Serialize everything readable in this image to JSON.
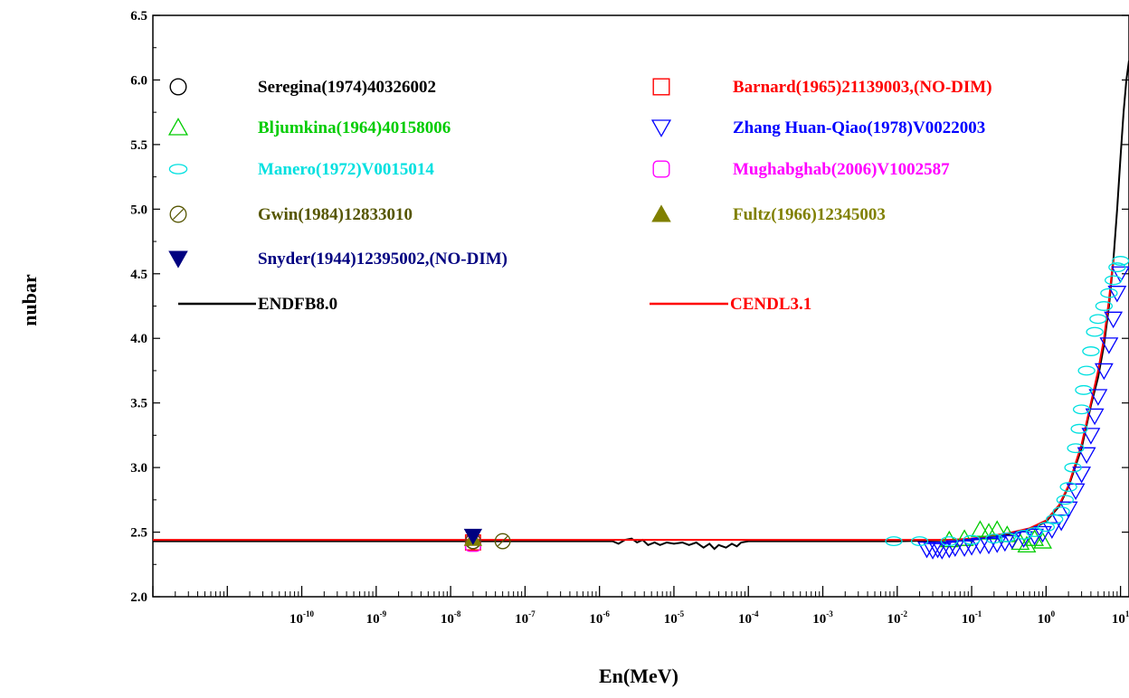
{
  "chart_data": {
    "type": "scatter",
    "title": "",
    "xlabel": "En(MeV)",
    "ylabel": "nubar",
    "xscale": "log",
    "xlim": [
      1e-12,
      13
    ],
    "ylim": [
      2.0,
      6.5
    ],
    "grid": false,
    "legend_position": "top-left",
    "x_tick_labels": [
      {
        "base": "10",
        "exp": "-10",
        "value": 1e-10
      },
      {
        "base": "10",
        "exp": "-9",
        "value": 1e-09
      },
      {
        "base": "10",
        "exp": "-8",
        "value": 1e-08
      },
      {
        "base": "10",
        "exp": "-7",
        "value": 1e-07
      },
      {
        "base": "10",
        "exp": "-6",
        "value": 1e-06
      },
      {
        "base": "10",
        "exp": "-5",
        "value": 1e-05
      },
      {
        "base": "10",
        "exp": "-4",
        "value": 0.0001
      },
      {
        "base": "10",
        "exp": "-3",
        "value": 0.001
      },
      {
        "base": "10",
        "exp": "-2",
        "value": 0.01
      },
      {
        "base": "10",
        "exp": "-1",
        "value": 0.1
      },
      {
        "base": "10",
        "exp": "0",
        "value": 1
      },
      {
        "base": "10",
        "exp": "1",
        "value": 10
      }
    ],
    "y_tick_labels": [
      "2.0",
      "2.5",
      "3.0",
      "3.5",
      "4.0",
      "4.5",
      "5.0",
      "5.5",
      "6.0",
      "6.5"
    ],
    "y_ticks": [
      2.0,
      2.5,
      3.0,
      3.5,
      4.0,
      4.5,
      5.0,
      5.5,
      6.0,
      6.5
    ],
    "series": [
      {
        "name": "Seregina(1974)40326002",
        "marker": "circle",
        "color": "#000000",
        "points": [
          [
            2e-08,
            2.43
          ]
        ]
      },
      {
        "name": "Barnard(1965)21139003,(NO-DIM)",
        "marker": "square",
        "color": "#ff0000",
        "points": [
          [
            2e-08,
            2.42
          ]
        ]
      },
      {
        "name": "Bljumkina(1964)40158006",
        "marker": "triangle-up",
        "color": "#00cc00",
        "points": [
          [
            0.05,
            2.44
          ],
          [
            0.08,
            2.45
          ],
          [
            0.13,
            2.52
          ],
          [
            0.17,
            2.5
          ],
          [
            0.22,
            2.52
          ],
          [
            0.3,
            2.48
          ],
          [
            0.45,
            2.42
          ],
          [
            0.55,
            2.4
          ],
          [
            0.7,
            2.45
          ],
          [
            0.9,
            2.43
          ]
        ]
      },
      {
        "name": "Zhang Huan-Qiao(1978)V0022003",
        "marker": "triangle-down",
        "color": "#0000ff",
        "points": [
          [
            0.025,
            2.37
          ],
          [
            0.03,
            2.36
          ],
          [
            0.035,
            2.37
          ],
          [
            0.04,
            2.36
          ],
          [
            0.05,
            2.37
          ],
          [
            0.06,
            2.38
          ],
          [
            0.08,
            2.38
          ],
          [
            0.1,
            2.39
          ],
          [
            0.13,
            2.4
          ],
          [
            0.17,
            2.4
          ],
          [
            0.22,
            2.41
          ],
          [
            0.28,
            2.42
          ],
          [
            0.35,
            2.44
          ],
          [
            0.5,
            2.45
          ],
          [
            0.7,
            2.47
          ],
          [
            0.9,
            2.49
          ],
          [
            1.2,
            2.52
          ],
          [
            1.6,
            2.58
          ],
          [
            2.0,
            2.68
          ],
          [
            2.5,
            2.82
          ],
          [
            3.0,
            2.95
          ],
          [
            3.5,
            3.1
          ],
          [
            4.0,
            3.25
          ],
          [
            4.5,
            3.4
          ],
          [
            5.0,
            3.55
          ],
          [
            6.0,
            3.75
          ],
          [
            7.0,
            3.95
          ],
          [
            8.0,
            4.15
          ],
          [
            9.0,
            4.35
          ],
          [
            10.0,
            4.5
          ]
        ]
      },
      {
        "name": "Manero(1972)V0015014",
        "marker": "ellipse",
        "color": "#00e0e0",
        "points": [
          [
            0.009,
            2.43
          ],
          [
            0.02,
            2.43
          ],
          [
            0.05,
            2.43
          ],
          [
            0.1,
            2.44
          ],
          [
            0.2,
            2.45
          ],
          [
            0.3,
            2.46
          ],
          [
            0.5,
            2.48
          ],
          [
            0.7,
            2.5
          ],
          [
            1.0,
            2.54
          ],
          [
            1.3,
            2.6
          ],
          [
            1.6,
            2.66
          ],
          [
            1.8,
            2.75
          ],
          [
            2.0,
            2.85
          ],
          [
            2.3,
            3.0
          ],
          [
            2.5,
            3.15
          ],
          [
            2.8,
            3.3
          ],
          [
            3.0,
            3.45
          ],
          [
            3.2,
            3.6
          ],
          [
            3.5,
            3.75
          ],
          [
            4.0,
            3.9
          ],
          [
            4.5,
            4.05
          ],
          [
            5.0,
            4.15
          ],
          [
            6.0,
            4.25
          ],
          [
            7.0,
            4.35
          ],
          [
            8.0,
            4.45
          ],
          [
            9.0,
            4.55
          ],
          [
            10.0,
            4.6
          ]
        ]
      },
      {
        "name": "Mughabghab(2006)V1002587",
        "marker": "rounded-square",
        "color": "#ff00ff",
        "points": [
          [
            2e-08,
            2.41
          ]
        ]
      },
      {
        "name": "Gwin(1984)12833010",
        "marker": "slashed-circle",
        "color": "#555500",
        "points": [
          [
            2e-08,
            2.43
          ],
          [
            5e-08,
            2.43
          ]
        ]
      },
      {
        "name": "Fultz(1966)12345003",
        "marker": "filled-triangle-up",
        "color": "#808000",
        "points": [
          [
            2e-08,
            2.45
          ]
        ]
      },
      {
        "name": "Snyder(1944)12395002,(NO-DIM)",
        "marker": "filled-triangle-down",
        "color": "#000080",
        "points": [
          [
            2e-08,
            2.47
          ]
        ]
      }
    ],
    "lines": [
      {
        "name": "ENDFB8.0",
        "color": "#000000",
        "points": [
          [
            1e-12,
            2.43
          ],
          [
            1.5e-06,
            2.43
          ],
          [
            1.8e-06,
            2.41
          ],
          [
            2.2e-06,
            2.44
          ],
          [
            2.7e-06,
            2.45
          ],
          [
            3.2e-06,
            2.42
          ],
          [
            3.8e-06,
            2.44
          ],
          [
            4.5e-06,
            2.4
          ],
          [
            5.5e-06,
            2.42
          ],
          [
            6.5e-06,
            2.4
          ],
          [
            8e-06,
            2.42
          ],
          [
            1e-05,
            2.41
          ],
          [
            1.3e-05,
            2.42
          ],
          [
            1.6e-05,
            2.4
          ],
          [
            2e-05,
            2.42
          ],
          [
            2.5e-05,
            2.38
          ],
          [
            3e-05,
            2.41
          ],
          [
            3.5e-05,
            2.37
          ],
          [
            4e-05,
            2.4
          ],
          [
            5e-05,
            2.38
          ],
          [
            6e-05,
            2.41
          ],
          [
            7e-05,
            2.39
          ],
          [
            8e-05,
            2.42
          ],
          [
            0.0001,
            2.43
          ],
          [
            0.001,
            2.43
          ],
          [
            0.01,
            2.43
          ],
          [
            0.1,
            2.44
          ],
          [
            0.3,
            2.48
          ],
          [
            0.6,
            2.52
          ],
          [
            1.0,
            2.58
          ],
          [
            1.5,
            2.7
          ],
          [
            2.0,
            2.85
          ],
          [
            3.0,
            3.15
          ],
          [
            4.0,
            3.48
          ],
          [
            5.0,
            3.7
          ],
          [
            6.0,
            3.95
          ],
          [
            7.0,
            4.25
          ],
          [
            8.0,
            4.6
          ],
          [
            9.0,
            5.0
          ],
          [
            10.0,
            5.4
          ],
          [
            11.0,
            5.75
          ],
          [
            12.0,
            6.0
          ],
          [
            13.0,
            6.15
          ]
        ]
      },
      {
        "name": "CENDL3.1",
        "color": "#ff0000",
        "points": [
          [
            1e-12,
            2.44
          ],
          [
            1e-06,
            2.44
          ],
          [
            0.001,
            2.44
          ],
          [
            0.01,
            2.44
          ],
          [
            0.05,
            2.44
          ],
          [
            0.1,
            2.45
          ],
          [
            0.3,
            2.49
          ],
          [
            0.6,
            2.53
          ],
          [
            1.0,
            2.59
          ],
          [
            1.5,
            2.71
          ],
          [
            2.0,
            2.86
          ],
          [
            3.0,
            3.18
          ],
          [
            4.0,
            3.5
          ],
          [
            5.0,
            3.75
          ],
          [
            6.0,
            4.0
          ],
          [
            7.0,
            4.3
          ],
          [
            8.0,
            4.62
          ]
        ]
      }
    ]
  }
}
